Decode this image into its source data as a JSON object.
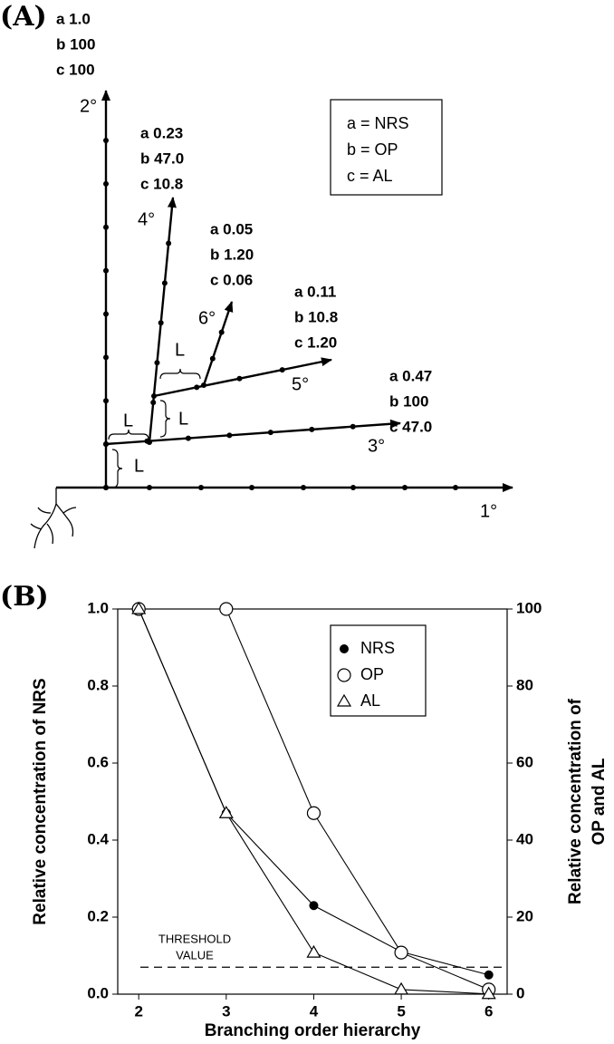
{
  "panel_a": {
    "label": "(A)",
    "legend": [
      "a = NRS",
      "b = OP",
      "c = AL"
    ],
    "branches": [
      {
        "order": "1°"
      },
      {
        "order": "2°",
        "values": [
          "a 1.0",
          "b 100",
          "c 100"
        ]
      },
      {
        "order": "3°",
        "values": [
          "a 0.47",
          "b 100",
          "c 47.0"
        ]
      },
      {
        "order": "4°",
        "values": [
          "a 0.23",
          "b 47.0",
          "c 10.8"
        ]
      },
      {
        "order": "5°",
        "values": [
          "a 0.11",
          "b 10.8",
          "c 1.20"
        ]
      },
      {
        "order": "6°",
        "values": [
          "a 0.05",
          "b 1.20",
          "c 0.06"
        ]
      }
    ],
    "spacing_labels": [
      "L",
      "L",
      "L",
      "L"
    ]
  },
  "chart_data": {
    "type": "line",
    "panel_label": "(B)",
    "x_label": "Branching order hierarchy",
    "y_label": "Relative  concentration of NRS",
    "y2_label": [
      "Relative  concentration of",
      "OP and AL"
    ],
    "x": [
      2,
      3,
      4,
      5,
      6
    ],
    "xlim": [
      1.76,
      6.21
    ],
    "xticks": [
      2,
      3,
      4,
      5,
      6
    ],
    "ylim": [
      0,
      1
    ],
    "yticks": [
      {
        "value": 0,
        "label": "0.0"
      },
      0.2,
      0.4,
      0.6,
      0.8,
      {
        "value": 1,
        "label": "1.0"
      }
    ],
    "y2lim": [
      0,
      100
    ],
    "y2ticks": [
      0,
      20,
      40,
      60,
      80,
      100
    ],
    "series": [
      {
        "name": "NRS",
        "color": "#000000",
        "marker": "filled-circle",
        "values": [
          1.0,
          0.47,
          0.23,
          0.11,
          0.05
        ]
      },
      {
        "name": "OP",
        "color": "#000000",
        "marker": "open-circle",
        "axis": "y2",
        "values": [
          100,
          100,
          47.0,
          10.8,
          1.2
        ]
      },
      {
        "name": "AL",
        "color": "#000000",
        "marker": "open-triangle",
        "axis": "y2",
        "values": [
          100,
          47.0,
          10.8,
          1.2,
          0.06
        ]
      }
    ],
    "threshold": {
      "label": [
        "THRESHOLD",
        "VALUE"
      ],
      "value": 0.07
    },
    "legend": "upper-center"
  }
}
